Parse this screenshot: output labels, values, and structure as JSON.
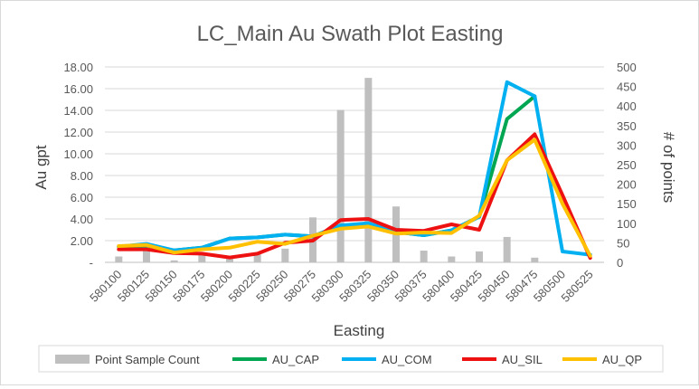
{
  "chart_data": {
    "type": "bar+line",
    "title": "LC_Main Au Swath Plot Easting",
    "xlabel": "Easting",
    "ylabel": "Au gpt",
    "y2label": "# of points",
    "categories": [
      "580100",
      "580125",
      "580150",
      "580175",
      "580200",
      "580225",
      "580250",
      "580275",
      "580300",
      "580325",
      "580350",
      "580375",
      "580400",
      "580425",
      "580450",
      "580475",
      "580500",
      "580525"
    ],
    "ylim": [
      0,
      18
    ],
    "yticks": [
      0,
      2,
      4,
      6,
      8,
      10,
      12,
      14,
      16,
      18
    ],
    "ytick_labels": [
      "-",
      "2.00",
      "4.00",
      "6.00",
      "8.00",
      "10.00",
      "12.00",
      "14.00",
      "16.00",
      "18.00"
    ],
    "y2lim": [
      0,
      500
    ],
    "y2ticks": [
      0,
      50,
      100,
      150,
      200,
      250,
      300,
      350,
      400,
      450,
      500
    ],
    "bars": {
      "name": "Point Sample Count",
      "color": "#bfbfbf",
      "values": [
        15,
        35,
        5,
        25,
        10,
        20,
        35,
        115,
        390,
        472,
        143,
        30,
        15,
        28,
        65,
        12,
        0,
        0
      ]
    },
    "series": [
      {
        "name": "AU_CAP",
        "color": "#00a651",
        "values": [
          1.45,
          1.55,
          1.1,
          1.35,
          2.2,
          2.3,
          2.55,
          2.4,
          3.4,
          3.5,
          2.8,
          2.5,
          2.95,
          4.2,
          13.2,
          15.3,
          null,
          null
        ]
      },
      {
        "name": "AU_COM",
        "color": "#00b0f0",
        "values": [
          1.45,
          1.7,
          1.1,
          1.35,
          2.2,
          2.3,
          2.55,
          2.4,
          3.4,
          3.6,
          2.8,
          2.5,
          2.95,
          4.2,
          16.6,
          15.3,
          1.0,
          0.7
        ]
      },
      {
        "name": "AU_SIL",
        "color": "#ee1111",
        "values": [
          1.2,
          1.2,
          0.85,
          0.8,
          0.45,
          0.8,
          1.8,
          2.0,
          3.9,
          4.0,
          3.0,
          2.9,
          3.5,
          3.0,
          9.4,
          11.8,
          6.2,
          0.4
        ]
      },
      {
        "name": "AU_QP",
        "color": "#ffc000",
        "values": [
          1.5,
          1.6,
          0.9,
          1.2,
          1.35,
          1.9,
          1.7,
          2.45,
          3.1,
          3.3,
          2.65,
          2.75,
          2.7,
          4.3,
          9.4,
          11.3,
          5.4,
          0.6
        ]
      }
    ],
    "legend": {
      "position": "bottom",
      "entries": [
        "Point Sample Count",
        "AU_CAP",
        "AU_COM",
        "AU_SIL",
        "AU_QP"
      ]
    },
    "gridlines": true
  }
}
